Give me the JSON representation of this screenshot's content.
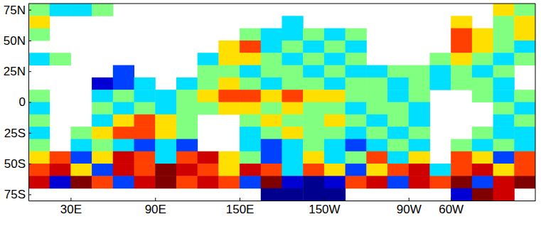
{
  "chart_data": {
    "type": "heatmap",
    "x": [
      7.5,
      22.5,
      37.5,
      52.5,
      67.5,
      82.5,
      97.5,
      112.5,
      127.5,
      142.5,
      157.5,
      172.5,
      187.5,
      202.5,
      217.5,
      232.5,
      247.5,
      262.5,
      277.5,
      292.5,
      307.5,
      322.5,
      337.5,
      352.5
    ],
    "y": [
      75,
      65,
      55,
      45,
      35,
      25,
      15,
      5,
      -5,
      -15,
      -25,
      -35,
      -45,
      -55,
      -65,
      -75
    ],
    "values": [
      [
        0,
        -1,
        -1,
        0,
        null,
        null,
        null,
        null,
        null,
        null,
        null,
        null,
        null,
        null,
        null,
        null,
        null,
        null,
        null,
        null,
        null,
        null,
        1,
        0
      ],
      [
        1,
        null,
        null,
        null,
        null,
        null,
        null,
        null,
        null,
        null,
        null,
        null,
        -1,
        null,
        null,
        null,
        null,
        null,
        null,
        null,
        1,
        null,
        0,
        1
      ],
      [
        0,
        null,
        null,
        null,
        null,
        null,
        null,
        null,
        null,
        null,
        0,
        -1,
        -1,
        0,
        -1,
        0,
        null,
        null,
        null,
        null,
        2,
        1,
        0,
        1
      ],
      [
        null,
        null,
        null,
        null,
        null,
        null,
        null,
        null,
        null,
        1,
        2,
        -1,
        0,
        -1,
        0,
        -1,
        null,
        null,
        null,
        null,
        2,
        1,
        0,
        -1
      ],
      [
        -1,
        0,
        null,
        null,
        null,
        null,
        null,
        null,
        -1,
        1,
        1,
        0,
        -1,
        0,
        -1,
        0,
        null,
        null,
        null,
        0,
        1,
        0,
        -1,
        0
      ],
      [
        null,
        null,
        null,
        null,
        -2,
        null,
        null,
        null,
        0,
        0,
        -1,
        0,
        0,
        -1,
        0,
        -1,
        -1,
        0,
        0,
        -1,
        0,
        -1,
        0,
        null
      ],
      [
        null,
        null,
        null,
        -3,
        -2,
        -1,
        null,
        -1,
        0,
        1,
        0,
        -1,
        0,
        0,
        -1,
        0,
        0,
        -1,
        0,
        -1,
        0,
        0,
        -1,
        null
      ],
      [
        0,
        null,
        null,
        -1,
        0,
        -1,
        -1,
        0,
        1,
        2,
        2,
        1,
        2,
        1,
        1,
        0,
        0,
        -1,
        0,
        null,
        null,
        0,
        -1,
        0
      ],
      [
        -1,
        null,
        null,
        0,
        -1,
        0,
        -1,
        0,
        0,
        1,
        1,
        0,
        1,
        0,
        0,
        -1,
        0,
        0,
        -1,
        null,
        null,
        null,
        0,
        -1
      ],
      [
        0,
        null,
        null,
        -1,
        1,
        2,
        1,
        0,
        null,
        null,
        0,
        1,
        0,
        0,
        1,
        0,
        -1,
        0,
        -1,
        null,
        null,
        null,
        -1,
        0
      ],
      [
        -1,
        null,
        0,
        1,
        2,
        2,
        1,
        0,
        null,
        null,
        -1,
        0,
        1,
        0,
        0,
        -1,
        0,
        -1,
        0,
        null,
        null,
        0,
        -1,
        -1
      ],
      [
        0,
        null,
        -1,
        0,
        -1,
        -2,
        -1,
        -2,
        null,
        null,
        -1,
        -2,
        -1,
        0,
        -1,
        -2,
        -1,
        0,
        -1,
        null,
        0,
        -1,
        0,
        -1
      ],
      [
        1,
        2,
        -2,
        1,
        3,
        2,
        -1,
        2,
        3,
        1,
        0,
        -2,
        -1,
        1,
        -1,
        0,
        2,
        -1,
        1,
        null,
        2,
        1,
        -2,
        2
      ],
      [
        2,
        3,
        1,
        -2,
        3,
        2,
        4,
        3,
        2,
        1,
        3,
        2,
        -1,
        2,
        1,
        -2,
        1,
        2,
        3,
        -1,
        2,
        3,
        1,
        2
      ],
      [
        3,
        -3,
        4,
        2,
        -2,
        3,
        4,
        2,
        3,
        2,
        -2,
        4,
        -3,
        -4,
        -3,
        2,
        3,
        -2,
        3,
        2,
        4,
        -2,
        3,
        4
      ],
      [
        null,
        null,
        null,
        null,
        null,
        null,
        null,
        null,
        null,
        null,
        null,
        -4,
        -4,
        -4,
        -4,
        null,
        null,
        null,
        null,
        null,
        -3,
        4,
        3,
        null
      ]
    ],
    "zlim": [
      -4,
      4
    ],
    "xlim": [
      0,
      360
    ],
    "ylim": [
      -80,
      80
    ],
    "xticks": [
      {
        "value": 30,
        "label": "30E"
      },
      {
        "value": 90,
        "label": "90E"
      },
      {
        "value": 150,
        "label": "150E"
      },
      {
        "value": 210,
        "label": "150W"
      },
      {
        "value": 270,
        "label": "90W"
      },
      {
        "value": 300,
        "label": "60W"
      }
    ],
    "yticks": [
      {
        "value": 75,
        "label": "75N"
      },
      {
        "value": 50,
        "label": "50N"
      },
      {
        "value": 25,
        "label": "25N"
      },
      0,
      {
        "value": -25,
        "label": "25S"
      },
      {
        "value": -50,
        "label": "50S"
      },
      {
        "value": -75,
        "label": "75S"
      }
    ]
  }
}
